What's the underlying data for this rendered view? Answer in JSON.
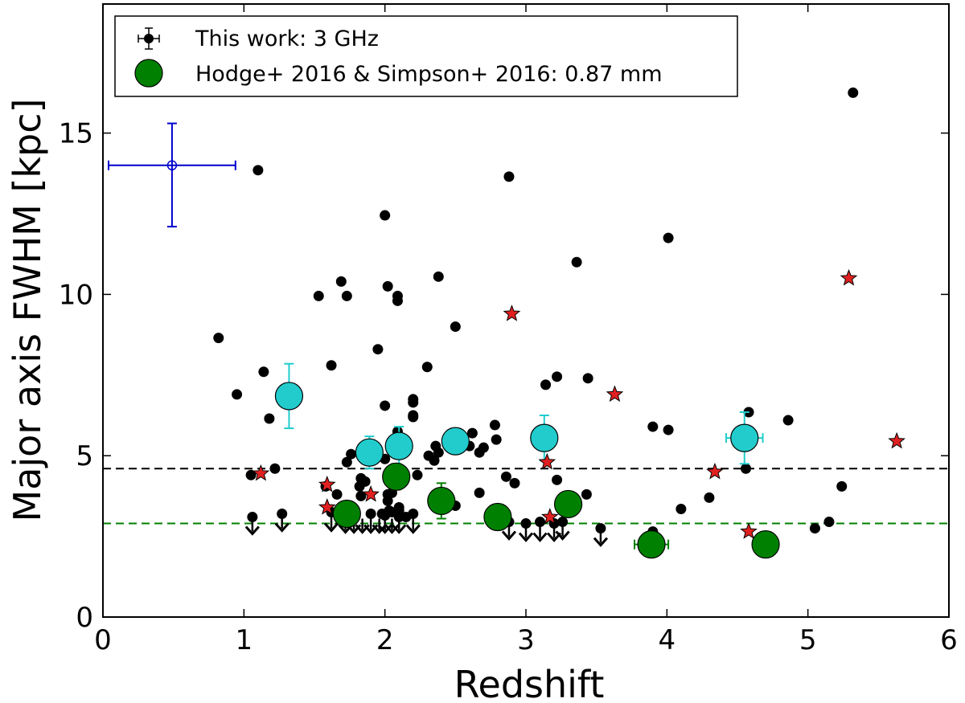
{
  "chart_data": {
    "type": "scatter",
    "title": "",
    "xlabel": "Redshift",
    "ylabel": "Major axis FWHM [kpc]",
    "xlim": [
      0,
      6
    ],
    "ylim": [
      0,
      19
    ],
    "xticks": [
      0,
      1,
      2,
      3,
      4,
      5,
      6
    ],
    "yticks": [
      0,
      5,
      10,
      15
    ],
    "xtick_labels": [
      "0",
      "1",
      "2",
      "3",
      "4",
      "5",
      "6"
    ],
    "ytick_labels": [
      "0",
      "5",
      "10",
      "15"
    ],
    "colors": {
      "this_work": "#000000",
      "hodge": "#008000",
      "cyan": "#22cccc",
      "star": "#e02020",
      "error_bar": "#0000cc",
      "line_black": "#000000",
      "line_green": "#008000"
    },
    "legend": {
      "position": "top-left",
      "entries": [
        {
          "label": "This work: 3 GHz",
          "marker": "black-dot-errorbar"
        },
        {
          "label": "Hodge+ 2016 & Simpson+ 2016: 0.87 mm",
          "marker": "green-circle"
        }
      ]
    },
    "reference_lines": [
      {
        "name": "median-this-work",
        "y": 4.6,
        "color": "#000000",
        "style": "dashed"
      },
      {
        "name": "median-hodge-simpson",
        "y": 2.9,
        "color": "#008000",
        "style": "dashed"
      }
    ],
    "typical_error": {
      "x": 0.49,
      "y": 14.0,
      "xerr": 0.45,
      "yerr_low": 1.9,
      "yerr_high": 1.3
    },
    "series": [
      {
        "name": "This work: 3 GHz",
        "marker": "black-dot",
        "points": [
          [
            1.1,
            13.85
          ],
          [
            2.0,
            12.45
          ],
          [
            2.88,
            13.65
          ],
          [
            5.32,
            16.25
          ],
          [
            4.01,
            11.75
          ],
          [
            3.36,
            11.0
          ],
          [
            2.38,
            10.55
          ],
          [
            1.69,
            10.4
          ],
          [
            2.02,
            10.25
          ],
          [
            1.53,
            9.95
          ],
          [
            2.09,
            9.95
          ],
          [
            1.73,
            9.95
          ],
          [
            2.09,
            9.8
          ],
          [
            2.5,
            9.0
          ],
          [
            0.82,
            8.65
          ],
          [
            1.95,
            8.3
          ],
          [
            2.3,
            7.75
          ],
          [
            1.62,
            7.8
          ],
          [
            1.14,
            7.6
          ],
          [
            3.22,
            7.45
          ],
          [
            3.44,
            7.4
          ],
          [
            3.14,
            7.2
          ],
          [
            0.95,
            6.9
          ],
          [
            2.2,
            6.75
          ],
          [
            2.2,
            6.65
          ],
          [
            2.0,
            6.55
          ],
          [
            4.58,
            6.35
          ],
          [
            2.2,
            6.25
          ],
          [
            2.2,
            6.2
          ],
          [
            1.18,
            6.15
          ],
          [
            4.86,
            6.1
          ],
          [
            2.78,
            5.95
          ],
          [
            3.9,
            5.9
          ],
          [
            4.01,
            5.8
          ],
          [
            2.09,
            5.75
          ],
          [
            2.62,
            5.7
          ],
          [
            2.1,
            5.55
          ],
          [
            2.79,
            5.5
          ],
          [
            2.7,
            5.25
          ],
          [
            2.6,
            5.3
          ],
          [
            2.67,
            5.1
          ],
          [
            2.36,
            5.3
          ],
          [
            2.38,
            5.1
          ],
          [
            2.31,
            5.0
          ],
          [
            1.76,
            5.05
          ],
          [
            1.91,
            5.0
          ],
          [
            2.35,
            4.85
          ],
          [
            1.73,
            4.8
          ],
          [
            2.0,
            4.9
          ],
          [
            1.22,
            4.6
          ],
          [
            2.04,
            4.4
          ],
          [
            4.56,
            4.6
          ],
          [
            1.05,
            4.4
          ],
          [
            2.86,
            4.35
          ],
          [
            3.22,
            4.25
          ],
          [
            2.92,
            4.15
          ],
          [
            1.83,
            4.3
          ],
          [
            1.86,
            4.2
          ],
          [
            2.23,
            4.4
          ],
          [
            1.82,
            4.05
          ],
          [
            1.58,
            4.05
          ],
          [
            1.66,
            3.8
          ],
          [
            5.24,
            4.05
          ],
          [
            2.67,
            3.85
          ],
          [
            3.43,
            3.8
          ],
          [
            2.05,
            3.85
          ],
          [
            4.3,
            3.7
          ],
          [
            1.83,
            3.75
          ],
          [
            2.02,
            3.8
          ],
          [
            2.02,
            3.6
          ],
          [
            2.1,
            3.4
          ],
          [
            2.5,
            3.45
          ],
          [
            4.1,
            3.35
          ],
          [
            2.03,
            3.3
          ],
          [
            2.1,
            3.3
          ],
          [
            5.15,
            2.95
          ],
          [
            5.05,
            2.75
          ],
          [
            3.9,
            2.65
          ],
          [
            1.06,
            3.1
          ],
          [
            1.27,
            3.2
          ],
          [
            1.62,
            3.25
          ],
          [
            1.72,
            3.2
          ],
          [
            1.9,
            3.2
          ],
          [
            2.0,
            3.15
          ],
          [
            2.05,
            3.25
          ],
          [
            2.1,
            3.15
          ],
          [
            2.1,
            3.1
          ],
          [
            2.2,
            3.2
          ],
          [
            2.88,
            2.95
          ],
          [
            3.0,
            2.9
          ],
          [
            3.1,
            2.95
          ],
          [
            3.2,
            2.9
          ],
          [
            3.26,
            2.95
          ],
          [
            3.53,
            2.75
          ],
          [
            1.98,
            3.2
          ],
          [
            2.15,
            3.1
          ]
        ]
      },
      {
        "name": "3 GHz upper limits",
        "marker": "down-arrow",
        "points": [
          [
            1.06,
            2.95
          ],
          [
            1.27,
            3.05
          ],
          [
            1.62,
            3.05
          ],
          [
            1.72,
            3.0
          ],
          [
            1.78,
            3.0
          ],
          [
            1.84,
            3.0
          ],
          [
            1.9,
            3.0
          ],
          [
            1.96,
            3.0
          ],
          [
            2.0,
            3.0
          ],
          [
            2.05,
            3.0
          ],
          [
            2.1,
            3.0
          ],
          [
            2.2,
            3.0
          ],
          [
            2.88,
            2.8
          ],
          [
            3.0,
            2.75
          ],
          [
            3.1,
            2.75
          ],
          [
            3.2,
            2.75
          ],
          [
            3.26,
            2.8
          ],
          [
            3.53,
            2.6
          ]
        ]
      },
      {
        "name": "Hodge+ 2016 & Simpson+ 2016: 0.87 mm",
        "marker": "green-circle",
        "points": [
          [
            1.73,
            3.2
          ],
          [
            2.08,
            4.35
          ],
          [
            2.4,
            3.6
          ],
          [
            2.8,
            3.1
          ],
          [
            3.3,
            3.5
          ],
          [
            3.89,
            2.25
          ],
          [
            4.7,
            2.25
          ]
        ],
        "yerr": [
          0,
          0.4,
          0.55,
          0,
          0,
          0,
          0
        ],
        "xerr": [
          0,
          0,
          0,
          0,
          0,
          0.12,
          0
        ]
      },
      {
        "name": "cyan-sources",
        "marker": "cyan-circle",
        "points": [
          [
            1.32,
            6.85
          ],
          [
            1.89,
            5.1
          ],
          [
            2.1,
            5.3
          ],
          [
            2.5,
            5.45
          ],
          [
            3.13,
            5.55
          ],
          [
            4.55,
            5.55
          ]
        ],
        "yerr": [
          1.0,
          0.5,
          0.6,
          0.3,
          0.7,
          0.8
        ],
        "xerr": [
          0,
          0,
          0,
          0,
          0,
          0.13
        ]
      },
      {
        "name": "red-star-sources",
        "marker": "red-star",
        "points": [
          [
            1.12,
            4.45
          ],
          [
            1.59,
            4.1
          ],
          [
            1.59,
            3.4
          ],
          [
            1.9,
            3.8
          ],
          [
            2.9,
            9.4
          ],
          [
            3.15,
            4.8
          ],
          [
            3.17,
            3.1
          ],
          [
            3.63,
            6.9
          ],
          [
            4.34,
            4.5
          ],
          [
            4.58,
            2.65
          ],
          [
            5.29,
            10.5
          ],
          [
            5.63,
            5.45
          ]
        ]
      }
    ]
  }
}
